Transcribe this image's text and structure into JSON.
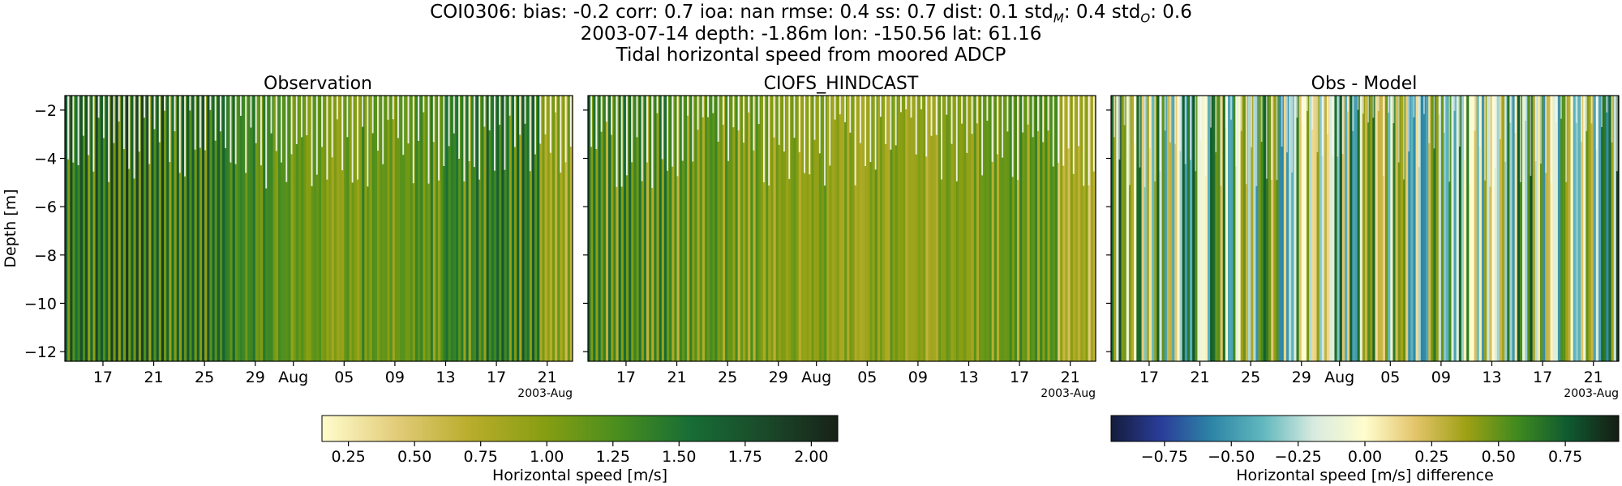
{
  "figure": {
    "title_lines": [
      "COI0306: bias: -0.2  corr: 0.7  ioa: nan  rmse: 0.4  ss: 0.7  dist: 0.1  std",
      "2003-07-14 depth: -1.86m lon: -150.56 lat: 61.16",
      "Tidal horizontal speed from moored ADCP"
    ],
    "title_std_m_sub": "M",
    "title_std_m_value": ": 0.4  std",
    "title_std_o_sub": "O",
    "title_std_o_value": ": 0.6"
  },
  "chart_data": [
    {
      "type": "heatmap",
      "title": "Observation",
      "ylabel": "Depth [m]",
      "xlabel": "",
      "x_range": [
        "2003-07-14",
        "2003-08-23"
      ],
      "ylim": [
        -12.4,
        -1.4
      ],
      "yticks": [
        -2,
        -4,
        -6,
        -8,
        -10,
        -12
      ],
      "xtick_labels": [
        "17",
        "21",
        "25",
        "29",
        "Aug",
        "05",
        "09",
        "13",
        "17",
        "21"
      ],
      "x_offset_label": "2003-Aug",
      "colormap": "speed",
      "value_range": [
        0.15,
        2.1
      ]
    },
    {
      "type": "heatmap",
      "title": "CIOFS_HINDCAST",
      "x_range": [
        "2003-07-14",
        "2003-08-23"
      ],
      "ylim": [
        -12.4,
        -1.4
      ],
      "yticks": [
        -2,
        -4,
        -6,
        -8,
        -10,
        -12
      ],
      "xtick_labels": [
        "17",
        "21",
        "25",
        "29",
        "Aug",
        "05",
        "09",
        "13",
        "17",
        "21"
      ],
      "x_offset_label": "2003-Aug",
      "colormap": "speed",
      "value_range": [
        0.15,
        2.1
      ]
    },
    {
      "type": "heatmap",
      "title": "Obs - Model",
      "x_range": [
        "2003-07-14",
        "2003-08-23"
      ],
      "ylim": [
        -12.4,
        -1.4
      ],
      "yticks": [
        -2,
        -4,
        -6,
        -8,
        -10,
        -12
      ],
      "xtick_labels": [
        "17",
        "21",
        "25",
        "29",
        "Aug",
        "05",
        "09",
        "13",
        "17",
        "21"
      ],
      "x_offset_label": "2003-Aug",
      "colormap": "diff",
      "value_range": [
        -0.95,
        0.95
      ]
    }
  ],
  "colorbars": [
    {
      "label": "Horizontal speed [m/s]",
      "range": [
        0.15,
        2.1
      ],
      "ticks": [
        "0.25",
        "0.50",
        "0.75",
        "1.00",
        "1.25",
        "1.50",
        "1.75",
        "2.00"
      ],
      "colormap": "speed"
    },
    {
      "label": "Horizontal speed [m/s] difference",
      "range": [
        -0.95,
        0.95
      ],
      "ticks": [
        "−0.75",
        "−0.50",
        "−0.25",
        "0.00",
        "0.25",
        "0.50",
        "0.75"
      ],
      "colormap": "diff"
    }
  ],
  "colors": {
    "speed": [
      "#fffdcd",
      "#e3cc7a",
      "#b9ad2c",
      "#889e12",
      "#4a8e1e",
      "#176d35",
      "#1a4a2a",
      "#182218"
    ],
    "diff": [
      "#141c3c",
      "#2a3e9a",
      "#2d86a6",
      "#62b8be",
      "#d9ebe0",
      "#fffdcd",
      "#e3c46a",
      "#9ea014",
      "#3f8a1e",
      "#0f5a30",
      "#161c14"
    ]
  }
}
